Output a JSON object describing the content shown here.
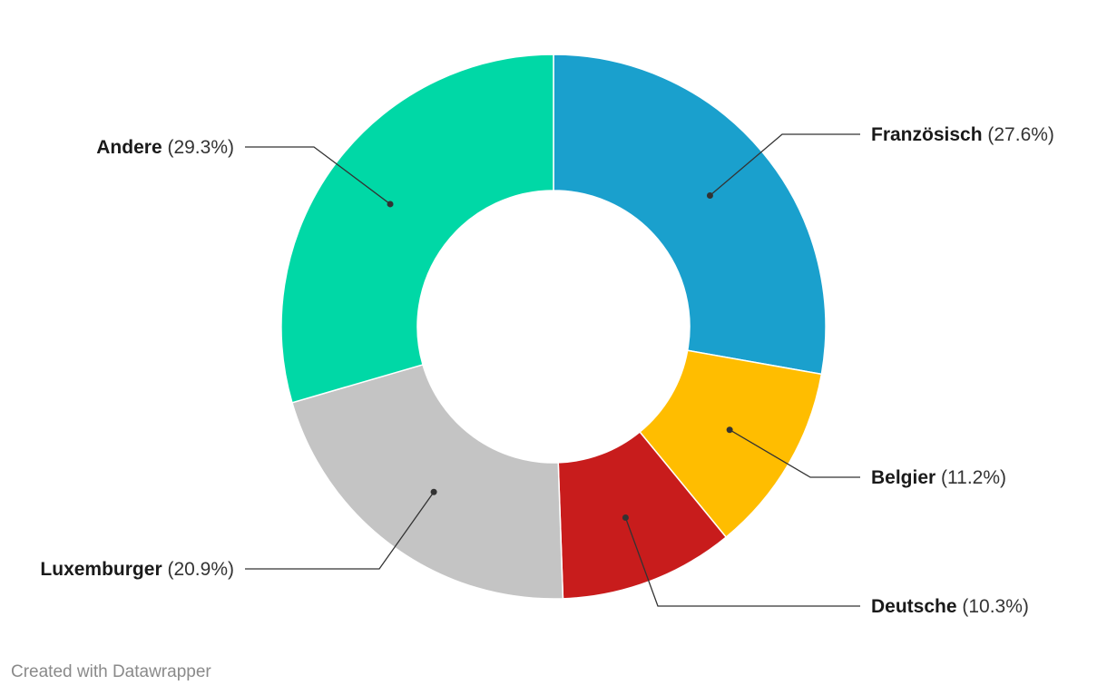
{
  "chart_data": {
    "type": "pie",
    "variant": "donut",
    "title": "",
    "slices": [
      {
        "label": "Französisch",
        "value": 27.6,
        "display": "(27.6%)",
        "color": "#1aa0cd"
      },
      {
        "label": "Belgier",
        "value": 11.2,
        "display": "(11.2%)",
        "color": "#ffbd00"
      },
      {
        "label": "Deutsche",
        "value": 10.3,
        "display": "(10.3%)",
        "color": "#c81c1c"
      },
      {
        "label": "Luxemburger",
        "value": 20.9,
        "display": "(20.9%)",
        "color": "#c4c4c4"
      },
      {
        "label": "Andere",
        "value": 29.3,
        "display": "(29.3%)",
        "color": "#00d8a6"
      }
    ]
  },
  "footer": {
    "text": "Created with Datawrapper"
  }
}
